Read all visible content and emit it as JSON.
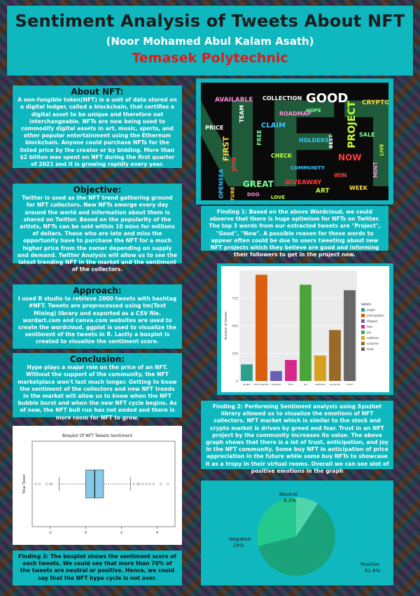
{
  "header": {
    "title": "Sentiment Analysis of Tweets About NFT",
    "author": "(Noor Mohamed Abul Kalam Asath)",
    "institution": "Temasek Polytechnic"
  },
  "about": {
    "heading": "About NFT:",
    "body": "A non-fungible token(NFT) is a unit of data stored on a digital ledger, called a blockchain, that certifies a digital asset to be unique and therefore not interchangeable. NFTs are now being used to commodify digital assets in art, music, sports, and other popular entertainment using the Ethereum blockchain. Anyone could purchase NFTs for the listed price by the creator or by bidding. More than $2 billion was spent on NFT during the first quarter of 2021 and it is growing rapidly every year."
  },
  "objective": {
    "heading": "Objective:",
    "body": "Twitter is used as the NFT trend gathering ground for NFT collectors. New NFTs emerge every day around the world and information about them is shared on Twitter. Based on the popularity of the artists, NFTs can be sold within 10 mins for millions of dollars. Those who are late and miss the opportunity have to purchase the NFT for a much higher price from the owner depending on supply and demand. Twitter Analysis will allow us to see the latest trending NFT in the market and the sentiment of the collectors."
  },
  "approach": {
    "heading": "Approach:",
    "body": "I used R studio to retrieve 2000 tweets with hashtag #NFT. Tweets are preprocessed using tm(Text Mining) library and exported as a CSV file. wordart.com and canva.com websites are used to create the wordcloud. ggplot is used to visualize the sentiment of the tweets in R. Lastly a boxplot is created to visualize the sentiment score."
  },
  "conclusion": {
    "heading": "Conclusion:",
    "body": "Hype plays a major role on the price of an NFT. Without the support of the community, the NFT marketplace won't last much longer. Getting to know the sentiment of the collectors and new NFT trends in the market will allow us to know when the NFT bubble burst and when the new NFT cycle begins. As of now, the NFT bull run has not ended and there is more room for NFT to grow."
  },
  "finding1": "Finding 1: Based on the above Wordcloud, we could observe that there is huge optimism for NFTs on Twitter. The top 3 words from our extracted tweets are \"Project\", \"Good\", \"Now\". A possible reason for these words to appear often could be due to users tweeting about new NFT projects which they believe are good and informing their followers to get in the project now.",
  "finding2": "Finding 2: Performing Sentiment analysis using Syuzhet library allowed us to visualize the emotions of NFT collectors. NFT market which is similar to the stock and crypto market is driven by greed and fear. Trust in an NFT project by the community increases its value. The above graph shows that there is a lot of trust, anticipation, and joy in the NFT community. Some buy NFT in anticipation of price appreciation in the future while some buy NFTs to showcase it as a tropy in their virtual rooms. Overall we can see alot of positive emotions in the graph",
  "finding3": "Finding 3: The boxplot shows the sentiment score of each tweets. We could see that more than 70% of the tweets are neutral or positive. Hence, we could say that the NFT hype cycle is not over.",
  "wordcloud": {
    "big_text": "NFT",
    "words": [
      "GOOD",
      "PROJECT",
      "NOW",
      "CLAIM",
      "FIRST",
      "GREAT",
      "AVAILABLE",
      "TEAM",
      "CHECK",
      "GIVEAWAY",
      "OPENSEA",
      "CRYPTO",
      "SALE",
      "MINT",
      "COLLECTION",
      "ART",
      "JOIN",
      "HOLDERS",
      "WEEK",
      "FREE",
      "ROADMAP",
      "PRICE",
      "LIVE",
      "WIN",
      "COMMUNITY",
      "FUTURE",
      "HOPE",
      "DOO",
      "BEST",
      "LOVE"
    ]
  },
  "chart_data": [
    {
      "type": "bar",
      "categories": [
        "anger",
        "anticipation",
        "disgust",
        "fear",
        "joy",
        "sadness",
        "surprise",
        "trust"
      ],
      "values": [
        150,
        960,
        90,
        190,
        870,
        230,
        460,
        820
      ],
      "colors": [
        "#2e9e8f",
        "#d95f0e",
        "#6a5fb5",
        "#d6288a",
        "#4aa43a",
        "#d8a021",
        "#9a6a28",
        "#666666"
      ],
      "ylabel": "Number of tweets",
      "yticks": [
        0,
        250,
        500,
        750
      ],
      "ylim": [
        0,
        1000
      ],
      "legend_title": "labels",
      "legend_position": "right",
      "grid": true
    },
    {
      "type": "boxplot",
      "title": "Boxplot Of NFT Tweets Sentiment",
      "ylabel": "Total Tweet",
      "xticks": [
        -2,
        0,
        2,
        4
      ],
      "xlim": [
        -3,
        5
      ],
      "q1": 0.0,
      "median": 0.5,
      "q3": 1.0,
      "whisker_low": -1.5,
      "whisker_high": 2.5,
      "outliers": [
        -2.8,
        -2.6,
        -2.2,
        -2.0,
        -1.9,
        2.7,
        2.9,
        3.0,
        3.2,
        3.4,
        3.6,
        3.8,
        4.2,
        4.6
      ]
    },
    {
      "type": "pie",
      "labels": [
        "Positive",
        "Negative",
        "Neutral"
      ],
      "percent_labels": [
        "61.8%",
        "29%",
        "9.3%"
      ],
      "values": [
        61.8,
        29,
        9.3
      ],
      "colors": [
        "#1aa37a",
        "#23c98f",
        "#4fd6ad"
      ]
    }
  ]
}
